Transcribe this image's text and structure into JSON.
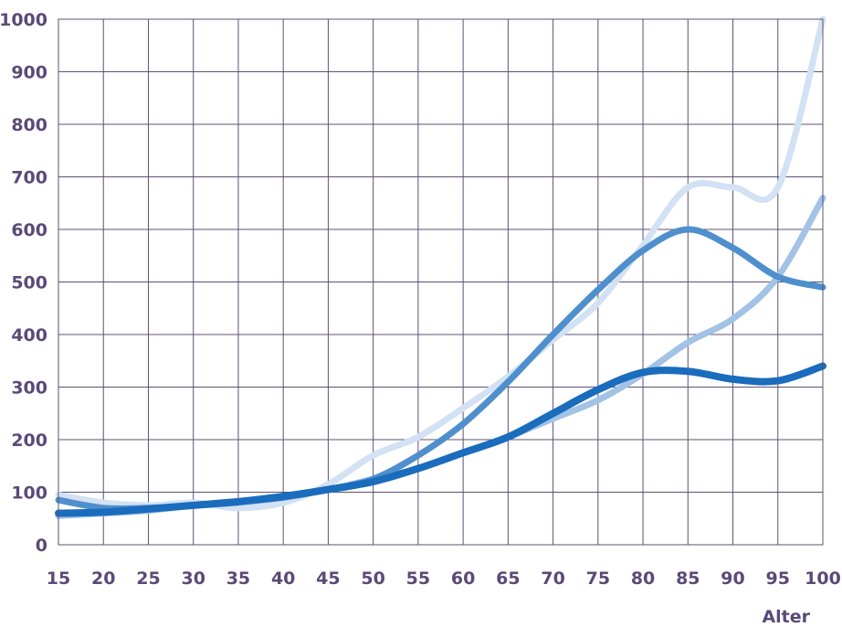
{
  "chart_data": {
    "type": "line",
    "title": "",
    "xlabel": "Alter",
    "ylabel": "",
    "xlim": [
      15,
      100
    ],
    "ylim": [
      0,
      1000
    ],
    "grid": true,
    "x": [
      15,
      20,
      25,
      30,
      35,
      40,
      45,
      50,
      55,
      60,
      65,
      70,
      75,
      80,
      85,
      90,
      95,
      100
    ],
    "x_ticks": [
      "15",
      "20",
      "25",
      "30",
      "35",
      "40",
      "45",
      "50",
      "55",
      "60",
      "65",
      "70",
      "75",
      "80",
      "85",
      "90",
      "95",
      "100"
    ],
    "y_ticks": [
      "0",
      "100",
      "200",
      "300",
      "400",
      "500",
      "600",
      "700",
      "800",
      "900",
      "1000"
    ],
    "series": [
      {
        "color": "#d2e1f3",
        "values": [
          95,
          80,
          75,
          80,
          70,
          80,
          115,
          170,
          205,
          260,
          320,
          390,
          460,
          570,
          680,
          680,
          680,
          1000
        ]
      },
      {
        "color": "#a2c2e6",
        "values": [
          55,
          60,
          65,
          75,
          80,
          90,
          105,
          125,
          145,
          175,
          205,
          240,
          275,
          325,
          385,
          430,
          510,
          660
        ]
      },
      {
        "color": "#4f8fcd",
        "values": [
          85,
          70,
          70,
          75,
          82,
          90,
          105,
          125,
          170,
          230,
          310,
          400,
          485,
          560,
          600,
          565,
          510,
          490
        ]
      },
      {
        "color": "#1a6cbd",
        "values": [
          60,
          62,
          68,
          75,
          82,
          92,
          105,
          120,
          145,
          175,
          205,
          250,
          295,
          328,
          330,
          315,
          312,
          340
        ]
      }
    ]
  }
}
